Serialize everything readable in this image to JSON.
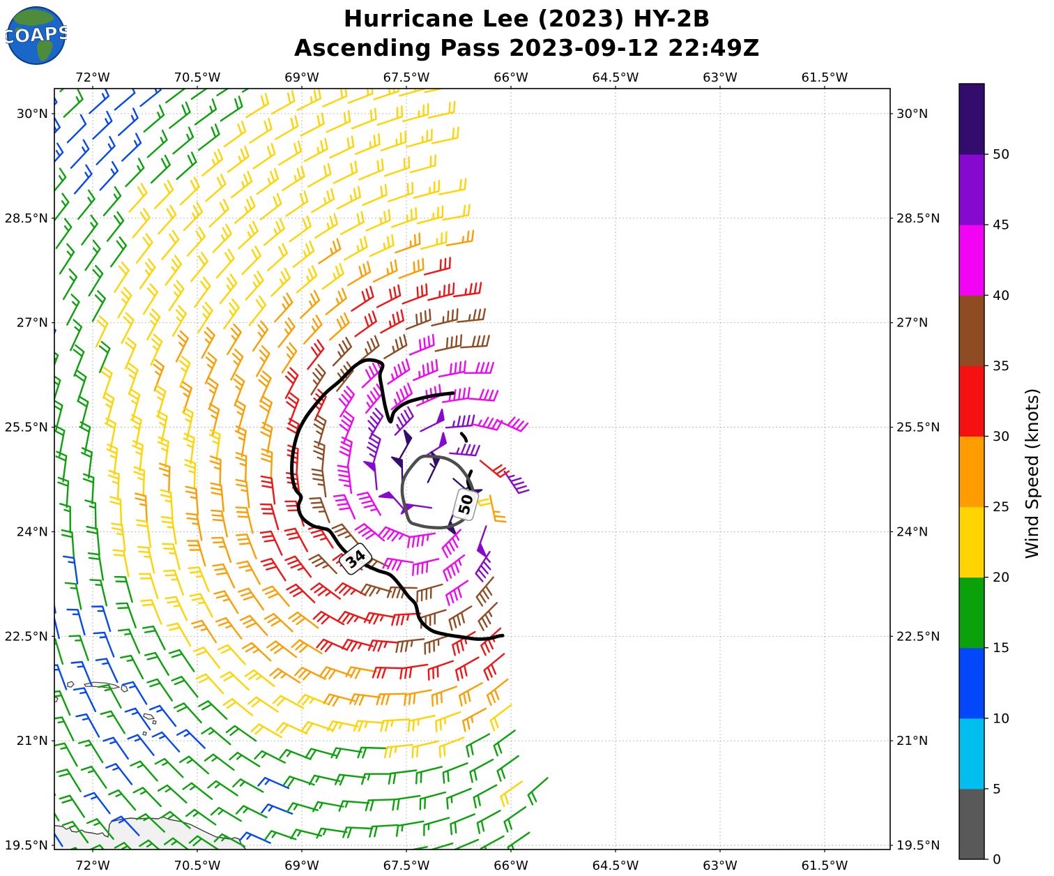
{
  "header": {
    "logo_text": "COAPS",
    "title_line1": "Hurricane Lee (2023) HY-2B",
    "title_line2": "Ascending Pass 2023-09-12 22:49Z"
  },
  "chart_data": {
    "type": "wind_barb_map",
    "title": "Hurricane Lee (2023) HY-2B",
    "subtitle": "Ascending Pass 2023-09-12 22:49Z",
    "storm_name": "Hurricane Lee (2023)",
    "satellite": "HY-2B",
    "pass_type": "Ascending",
    "valid_time": "2023-09-12 22:49Z",
    "axes": {
      "lon_min": -72.55,
      "lon_max": -60.56,
      "lat_min": 19.44,
      "lat_max": 30.36,
      "lon_ticks": [
        {
          "value": -72.0,
          "label": "72°W"
        },
        {
          "value": -70.5,
          "label": "70.5°W"
        },
        {
          "value": -69.0,
          "label": "69°W"
        },
        {
          "value": -67.5,
          "label": "67.5°W"
        },
        {
          "value": -66.0,
          "label": "66°W"
        },
        {
          "value": -64.5,
          "label": "64.5°W"
        },
        {
          "value": -63.0,
          "label": "63°W"
        },
        {
          "value": -61.5,
          "label": "61.5°W"
        }
      ],
      "lat_ticks": [
        {
          "value": 30.0,
          "label": "30°N"
        },
        {
          "value": 28.5,
          "label": "28.5°N"
        },
        {
          "value": 27.0,
          "label": "27°N"
        },
        {
          "value": 25.5,
          "label": "25.5°N"
        },
        {
          "value": 24.0,
          "label": "24°N"
        },
        {
          "value": 22.5,
          "label": "22.5°N"
        },
        {
          "value": 21.0,
          "label": "21°N"
        },
        {
          "value": 19.5,
          "label": "19.5°N"
        }
      ],
      "grid_dashed": true
    },
    "colorbar": {
      "label": "Wind Speed (knots)",
      "boundaries_kt": [
        0,
        5,
        10,
        15,
        20,
        25,
        30,
        35,
        40,
        45,
        50,
        55
      ],
      "tick_labels": [
        "0",
        "5",
        "10",
        "15",
        "20",
        "25",
        "30",
        "35",
        "40",
        "45",
        "50"
      ],
      "colors": [
        "#595959",
        "#00BFEF",
        "#0347FA",
        "#0AA10A",
        "#FFD400",
        "#FF9C00",
        "#F51111",
        "#8F4B22",
        "#F303F3",
        "#8708CE",
        "#330D6E"
      ]
    },
    "wind_field": {
      "units": "knots",
      "storm_center": {
        "lon": -67.05,
        "lat": 24.62
      },
      "radial_speed_profile_deg_kt": [
        [
          0,
          52.5
        ],
        [
          0.5,
          49.5
        ],
        [
          1.05,
          44.5
        ],
        [
          1.55,
          39.5
        ],
        [
          2.15,
          34.5
        ],
        [
          2.75,
          29.5
        ],
        [
          3.6,
          24.5
        ],
        [
          5.0,
          19.5
        ],
        [
          7.4,
          14.5
        ],
        [
          9.8,
          11
        ]
      ],
      "inflow_deg": 12,
      "ambient_flow_kt": {
        "u": -6,
        "v": -1
      },
      "asym_amp_kt": 1.8,
      "asym_dir_deg": 75,
      "wobble_amp_kt": 2.2,
      "jitter_amp_kt": 1.8,
      "grid_spacing_deg": 0.37,
      "grid_rotation_deg": 8,
      "barb_increments_kt": {
        "flag": 50,
        "full": 10,
        "half": 5
      },
      "swath_edge_lat_lon": [
        [
          30.4,
          -67.35
        ],
        [
          28.6,
          -66.95
        ],
        [
          27.1,
          -66.75
        ],
        [
          25.6,
          -66.18
        ],
        [
          23.6,
          -66.08
        ],
        [
          21.6,
          -65.7
        ],
        [
          20.6,
          -65.52
        ],
        [
          19.4,
          -65.3
        ]
      ],
      "anomaly_cells": [
        {
          "lon": -66.62,
          "lat": 24.7,
          "kt": 21
        },
        {
          "lon": -66.44,
          "lat": 25.02,
          "kt": 31
        },
        {
          "lon": -66.3,
          "lat": 24.52,
          "kt": 27
        }
      ]
    },
    "contours": [
      {
        "level": 34,
        "color": "#000000",
        "label": "34",
        "label_pos": {
          "lon": -68.23,
          "lat": 23.61
        },
        "label_rotation": -38,
        "box_border": "#222222",
        "closed": false,
        "path": [
          [
            -66.83,
            25.99
          ],
          [
            -67.13,
            25.95
          ],
          [
            -67.48,
            25.86
          ],
          [
            -67.67,
            25.73
          ],
          [
            -67.73,
            25.58
          ],
          [
            -67.8,
            25.78
          ],
          [
            -67.85,
            26.05
          ],
          [
            -67.88,
            26.25
          ],
          [
            -67.84,
            26.39
          ],
          [
            -67.93,
            26.45
          ],
          [
            -68.09,
            26.46
          ],
          [
            -68.25,
            26.37
          ],
          [
            -68.45,
            26.17
          ],
          [
            -68.65,
            26.0
          ],
          [
            -68.8,
            25.83
          ],
          [
            -68.95,
            25.63
          ],
          [
            -69.06,
            25.41
          ],
          [
            -69.13,
            25.11
          ],
          [
            -69.14,
            24.81
          ],
          [
            -69.09,
            24.61
          ],
          [
            -69.01,
            24.5
          ],
          [
            -69.05,
            24.37
          ],
          [
            -69.0,
            24.21
          ],
          [
            -68.85,
            24.09
          ],
          [
            -68.71,
            24.05
          ],
          [
            -68.6,
            24.01
          ],
          [
            -68.47,
            23.82
          ],
          [
            -68.36,
            23.7
          ],
          [
            -68.21,
            23.6
          ],
          [
            -68.06,
            23.51
          ],
          [
            -67.9,
            23.44
          ],
          [
            -67.73,
            23.38
          ],
          [
            -67.6,
            23.24
          ],
          [
            -67.47,
            23.07
          ],
          [
            -67.37,
            22.96
          ],
          [
            -67.32,
            22.77
          ],
          [
            -67.24,
            22.66
          ],
          [
            -67.11,
            22.57
          ],
          [
            -66.91,
            22.52
          ],
          [
            -66.71,
            22.49
          ],
          [
            -66.49,
            22.46
          ],
          [
            -66.3,
            22.47
          ],
          [
            -66.19,
            22.5
          ],
          [
            -66.12,
            22.51
          ]
        ],
        "fragments": [
          [
            [
              -66.71,
              25.41
            ],
            [
              -66.66,
              25.35
            ],
            [
              -66.64,
              25.3
            ]
          ],
          [
            [
              -66.57,
              24.87
            ],
            [
              -66.62,
              24.73
            ],
            [
              -66.58,
              24.6
            ]
          ]
        ]
      },
      {
        "level": 50,
        "color": "#4D4D4D",
        "label": "50",
        "label_pos": {
          "lon": -66.65,
          "lat": 24.39
        },
        "label_rotation": -75,
        "box_border": "#999999",
        "closed": true,
        "path": [
          [
            -67.29,
            25.07
          ],
          [
            -67.43,
            24.93
          ],
          [
            -67.54,
            24.75
          ],
          [
            -67.56,
            24.56
          ],
          [
            -67.52,
            24.36
          ],
          [
            -67.46,
            24.16
          ],
          [
            -67.35,
            24.1
          ],
          [
            -67.13,
            24.06
          ],
          [
            -66.9,
            24.07
          ],
          [
            -66.7,
            24.16
          ],
          [
            -66.6,
            24.28
          ],
          [
            -66.55,
            24.38
          ],
          [
            -66.53,
            24.5
          ],
          [
            -66.57,
            24.67
          ],
          [
            -66.65,
            24.82
          ],
          [
            -66.77,
            24.96
          ],
          [
            -66.93,
            25.05
          ],
          [
            -67.13,
            25.08
          ]
        ],
        "fragments": []
      }
    ],
    "coastlines": {
      "stroke": "#3C3C3C",
      "land_fill": "#F1F1F1",
      "hispaniola": [
        [
          -72.6,
          19.79
        ],
        [
          -72.43,
          19.77
        ],
        [
          -72.38,
          19.73
        ],
        [
          -72.33,
          19.75
        ],
        [
          -72.3,
          19.7
        ],
        [
          -72.23,
          19.69
        ],
        [
          -72.16,
          19.72
        ],
        [
          -72.11,
          19.69
        ],
        [
          -72.03,
          19.68
        ],
        [
          -71.93,
          19.66
        ],
        [
          -71.86,
          19.68
        ],
        [
          -71.83,
          19.64
        ],
        [
          -71.78,
          19.62
        ],
        [
          -71.76,
          19.8
        ],
        [
          -71.73,
          19.84
        ],
        [
          -71.6,
          19.87
        ],
        [
          -71.46,
          19.89
        ],
        [
          -71.33,
          19.88
        ],
        [
          -71.2,
          19.89
        ],
        [
          -71.06,
          19.88
        ],
        [
          -71.0,
          19.91
        ],
        [
          -70.9,
          19.87
        ],
        [
          -70.73,
          19.84
        ],
        [
          -70.6,
          19.8
        ],
        [
          -70.5,
          19.75
        ],
        [
          -70.4,
          19.7
        ],
        [
          -70.23,
          19.62
        ],
        [
          -70.1,
          19.6
        ],
        [
          -70.03,
          19.59
        ],
        [
          -69.96,
          19.61
        ],
        [
          -69.9,
          19.59
        ],
        [
          -69.86,
          19.5
        ],
        [
          -69.81,
          19.45
        ],
        [
          -69.78,
          19.4
        ],
        [
          -69.78,
          19.2
        ],
        [
          -72.6,
          19.2
        ]
      ],
      "islands": [
        [
          [
            -72.36,
            21.83
          ],
          [
            -72.3,
            21.85
          ],
          [
            -72.27,
            21.81
          ],
          [
            -72.31,
            21.77
          ],
          [
            -72.36,
            21.78
          ]
        ],
        [
          [
            -72.12,
            21.81
          ],
          [
            -71.98,
            21.84
          ],
          [
            -71.82,
            21.83
          ],
          [
            -71.68,
            21.8
          ],
          [
            -71.62,
            21.77
          ],
          [
            -71.7,
            21.75
          ],
          [
            -71.85,
            21.77
          ],
          [
            -72.0,
            21.78
          ],
          [
            -72.1,
            21.78
          ]
        ],
        [
          [
            -71.58,
            21.8
          ],
          [
            -71.52,
            21.78
          ],
          [
            -71.5,
            21.72
          ],
          [
            -71.55,
            21.7
          ],
          [
            -71.59,
            21.74
          ]
        ],
        [
          [
            -71.26,
            21.39
          ],
          [
            -71.16,
            21.37
          ],
          [
            -71.12,
            21.32
          ],
          [
            -71.2,
            21.31
          ],
          [
            -71.27,
            21.35
          ]
        ],
        [
          [
            -71.13,
            21.29
          ],
          [
            -71.09,
            21.28
          ],
          [
            -71.1,
            21.24
          ],
          [
            -71.14,
            21.25
          ]
        ],
        [
          [
            -71.27,
            21.13
          ],
          [
            -71.23,
            21.12
          ],
          [
            -71.24,
            21.08
          ],
          [
            -71.28,
            21.09
          ]
        ],
        [
          [
            -72.56,
            21.64
          ],
          [
            -72.5,
            21.61
          ],
          [
            -72.52,
            21.56
          ],
          [
            -72.57,
            21.56
          ]
        ]
      ]
    }
  }
}
